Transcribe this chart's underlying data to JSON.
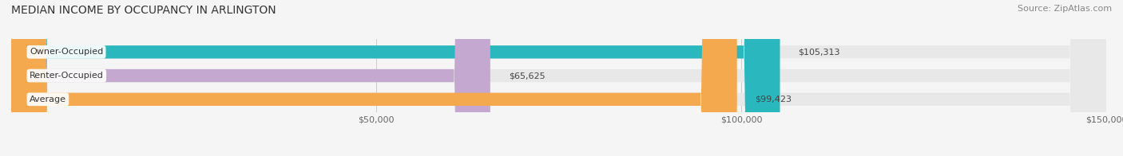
{
  "title": "MEDIAN INCOME BY OCCUPANCY IN ARLINGTON",
  "source": "Source: ZipAtlas.com",
  "categories": [
    "Owner-Occupied",
    "Renter-Occupied",
    "Average"
  ],
  "values": [
    105313,
    65625,
    99423
  ],
  "labels": [
    "$105,313",
    "$65,625",
    "$99,423"
  ],
  "bar_colors": [
    "#2ab8be",
    "#c4a8d0",
    "#f5a94e"
  ],
  "bar_bg_color": "#e8e8e8",
  "background_color": "#f5f5f5",
  "xlim": [
    0,
    150000
  ],
  "xticks": [
    50000,
    100000,
    150000
  ],
  "xtick_labels": [
    "$50,000",
    "$100,000",
    "$150,000"
  ],
  "title_fontsize": 10,
  "source_fontsize": 8,
  "label_fontsize": 8,
  "bar_height": 0.55
}
